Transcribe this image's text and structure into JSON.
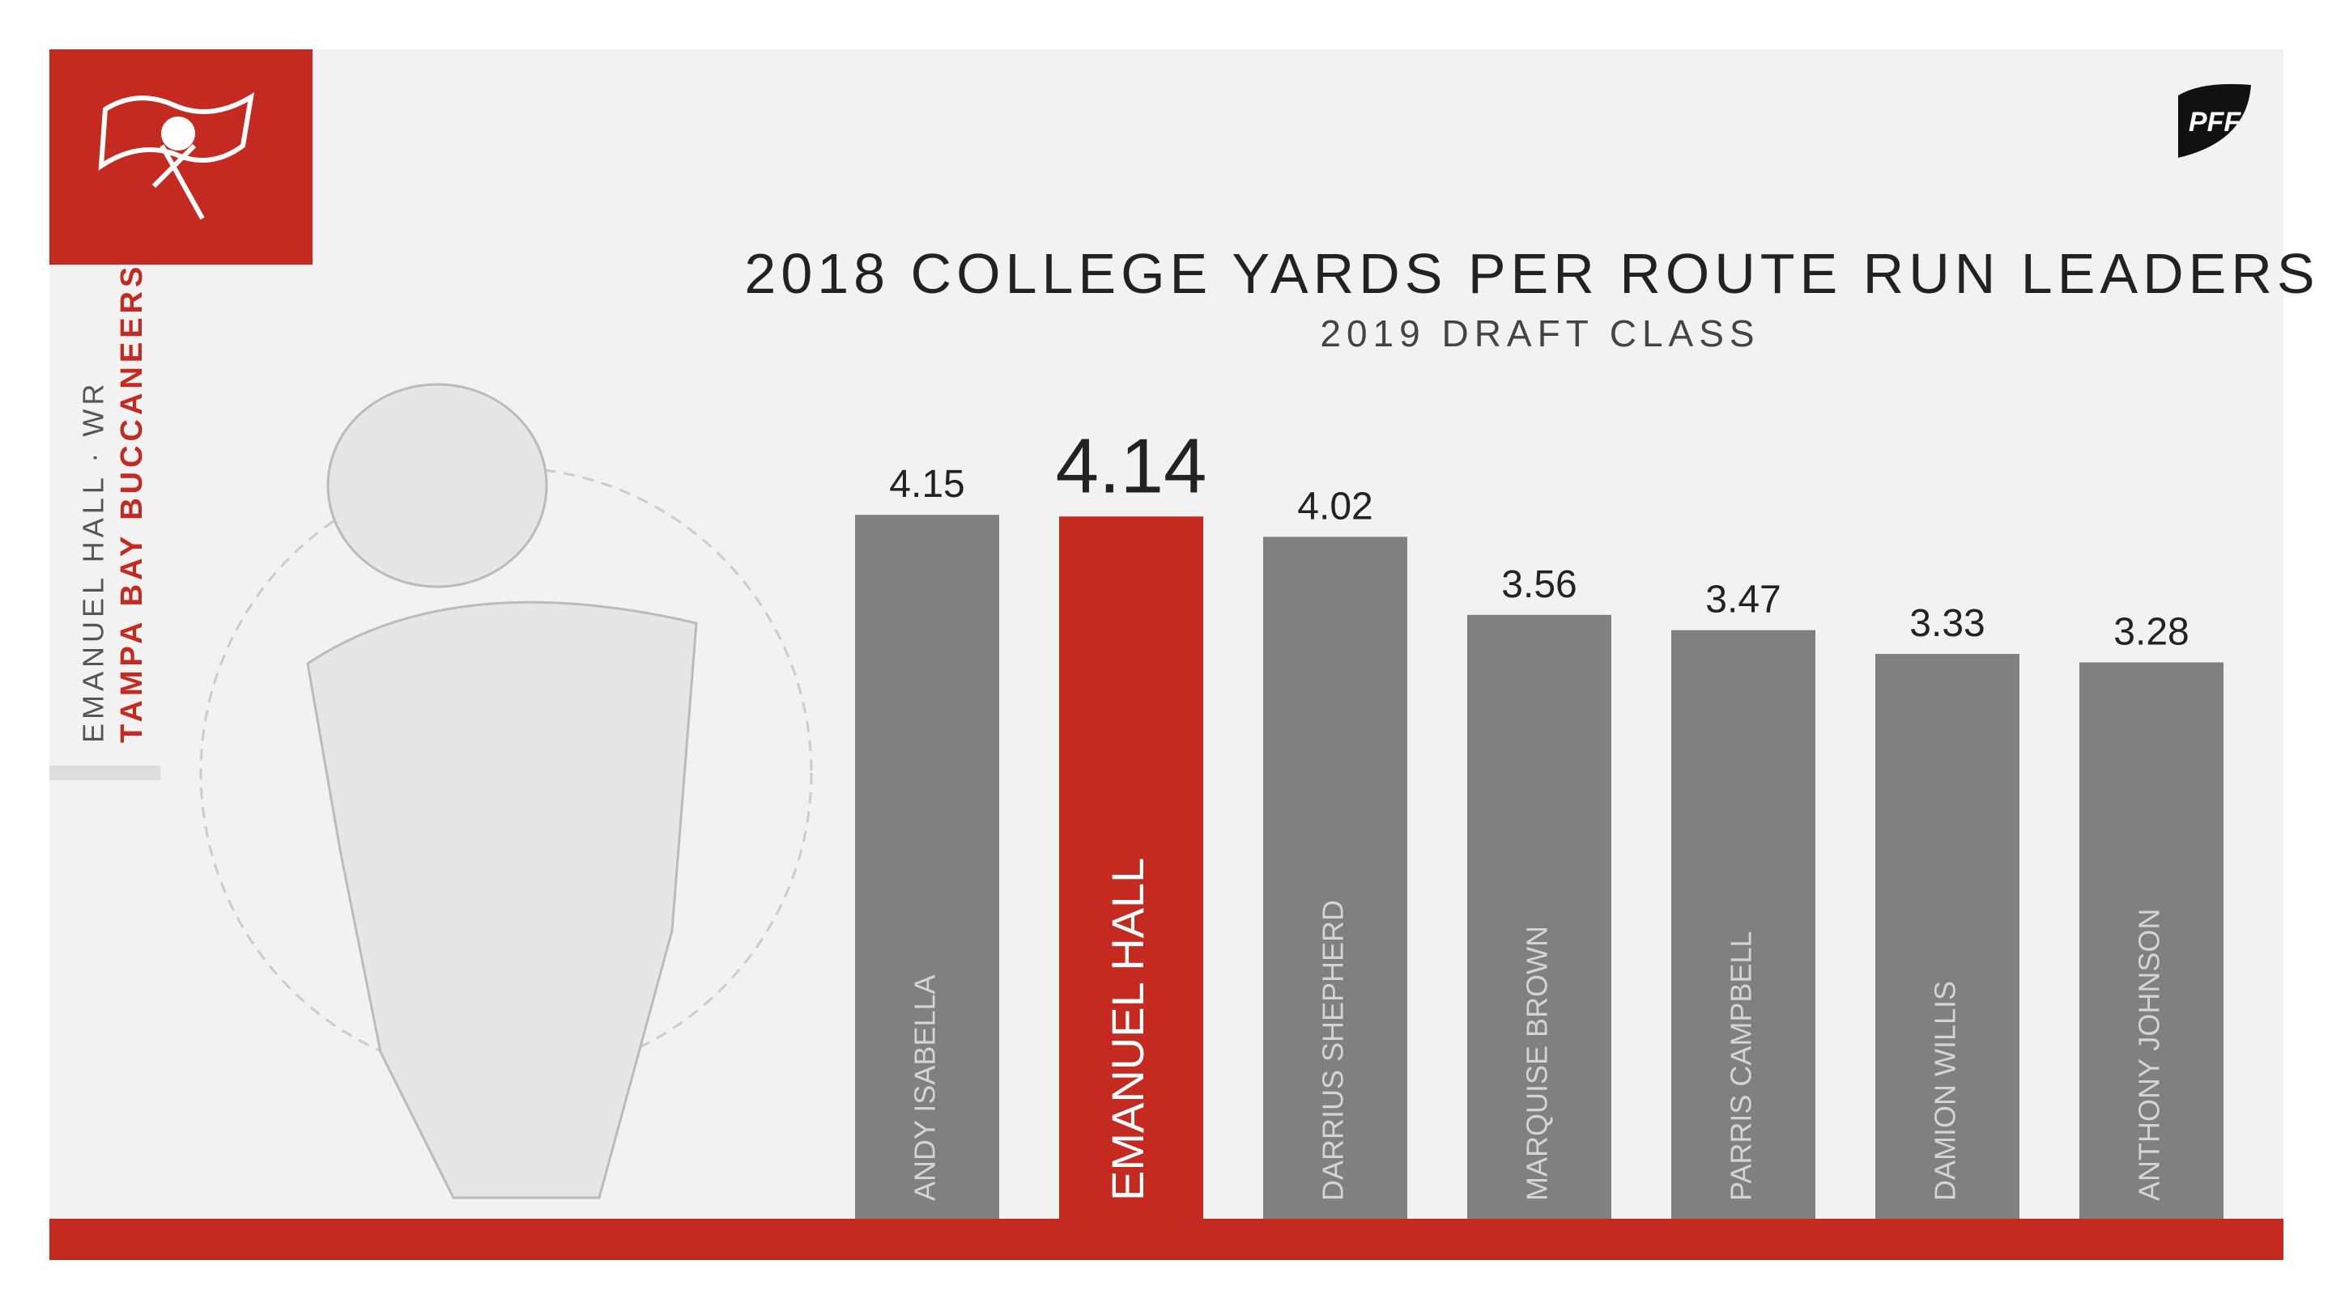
{
  "chart_data": {
    "type": "bar",
    "title": "2018 COLLEGE YARDS PER ROUTE RUN LEADERS",
    "subtitle": "2019 DRAFT CLASS",
    "player": "EMANUEL HALL · WR",
    "team": "TAMPA BAY BUCCANEERS",
    "brand": "PFF",
    "categories": [
      "ANDY ISABELLA",
      "EMANUEL HALL",
      "DARRIUS SHEPHERD",
      "MARQUISE BROWN",
      "PARRIS CAMPBELL",
      "DAMION WILLIS",
      "ANTHONY JOHNSON"
    ],
    "values": [
      4.15,
      4.14,
      4.02,
      3.56,
      3.47,
      3.33,
      3.28
    ],
    "colors": [
      "#808080",
      "#c52a20",
      "#808080",
      "#808080",
      "#808080",
      "#808080",
      "#808080"
    ]
  }
}
